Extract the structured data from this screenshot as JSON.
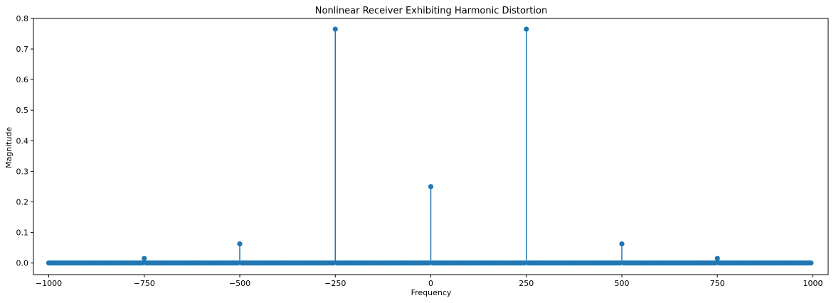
{
  "chart_data": {
    "type": "stem",
    "title": "Nonlinear Receiver Exhibiting Harmonic Distortion",
    "xlabel": "Frequency",
    "ylabel": "Magnitude",
    "xlim": [
      -1040,
      1040
    ],
    "ylim": [
      -0.038,
      0.8
    ],
    "grid": false,
    "x_ticks": [
      -1000,
      -750,
      -500,
      -250,
      0,
      250,
      500,
      750,
      1000
    ],
    "x_tick_labels": [
      "−1000",
      "−750",
      "−500",
      "−250",
      "0",
      "250",
      "500",
      "750",
      "1000"
    ],
    "y_ticks": [
      0.0,
      0.1,
      0.2,
      0.3,
      0.4,
      0.5,
      0.6,
      0.7,
      0.8
    ],
    "y_tick_labels": [
      "0.0",
      "0.1",
      "0.2",
      "0.3",
      "0.4",
      "0.5",
      "0.6",
      "0.7",
      "0.8"
    ],
    "sample_spacing": 5,
    "x_start": -1000,
    "x_end": 995,
    "baseline": 0,
    "peaks": [
      {
        "x": -750,
        "y": 0.015
      },
      {
        "x": -500,
        "y": 0.0625
      },
      {
        "x": -250,
        "y": 0.765
      },
      {
        "x": 0,
        "y": 0.25
      },
      {
        "x": 250,
        "y": 0.765
      },
      {
        "x": 500,
        "y": 0.0625
      },
      {
        "x": 750,
        "y": 0.015
      }
    ],
    "colors": {
      "stem": "#1f77b4",
      "marker": "#1f77b4",
      "baseline": "#d62728",
      "axes": "#000000"
    }
  }
}
